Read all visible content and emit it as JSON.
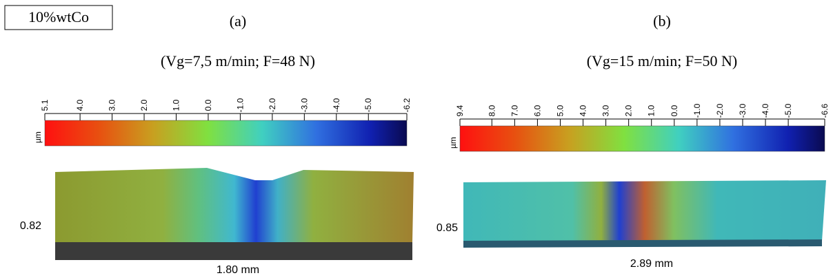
{
  "label_box": "10%wtCo",
  "panels": [
    {
      "label": "(a)",
      "conditions": "(Vg=7,5 m/min; F=48 N)",
      "colorbar": {
        "unit": "µm",
        "ticks": [
          "5.1",
          "4.0",
          "3.0",
          "2.0",
          "1.0",
          "0.0",
          "-1.0",
          "-2.0",
          "-3.0",
          "-4.0",
          "-5.0",
          "-6.2"
        ]
      },
      "height_label": "0.82",
      "width_label": "1.80 mm"
    },
    {
      "label": "(b)",
      "conditions": "(Vg=15 m/min; F=50 N)",
      "colorbar": {
        "unit": "µm",
        "ticks": [
          "9.4",
          "8.0",
          "7.0",
          "6.0",
          "5.0",
          "4.0",
          "3.0",
          "2.0",
          "1.0",
          "0.0",
          "-1.0",
          "-2.0",
          "-3.0",
          "-4.0",
          "-5.0",
          "-6.6"
        ]
      },
      "height_label": "0.85",
      "width_label": "2.89 mm"
    }
  ]
}
